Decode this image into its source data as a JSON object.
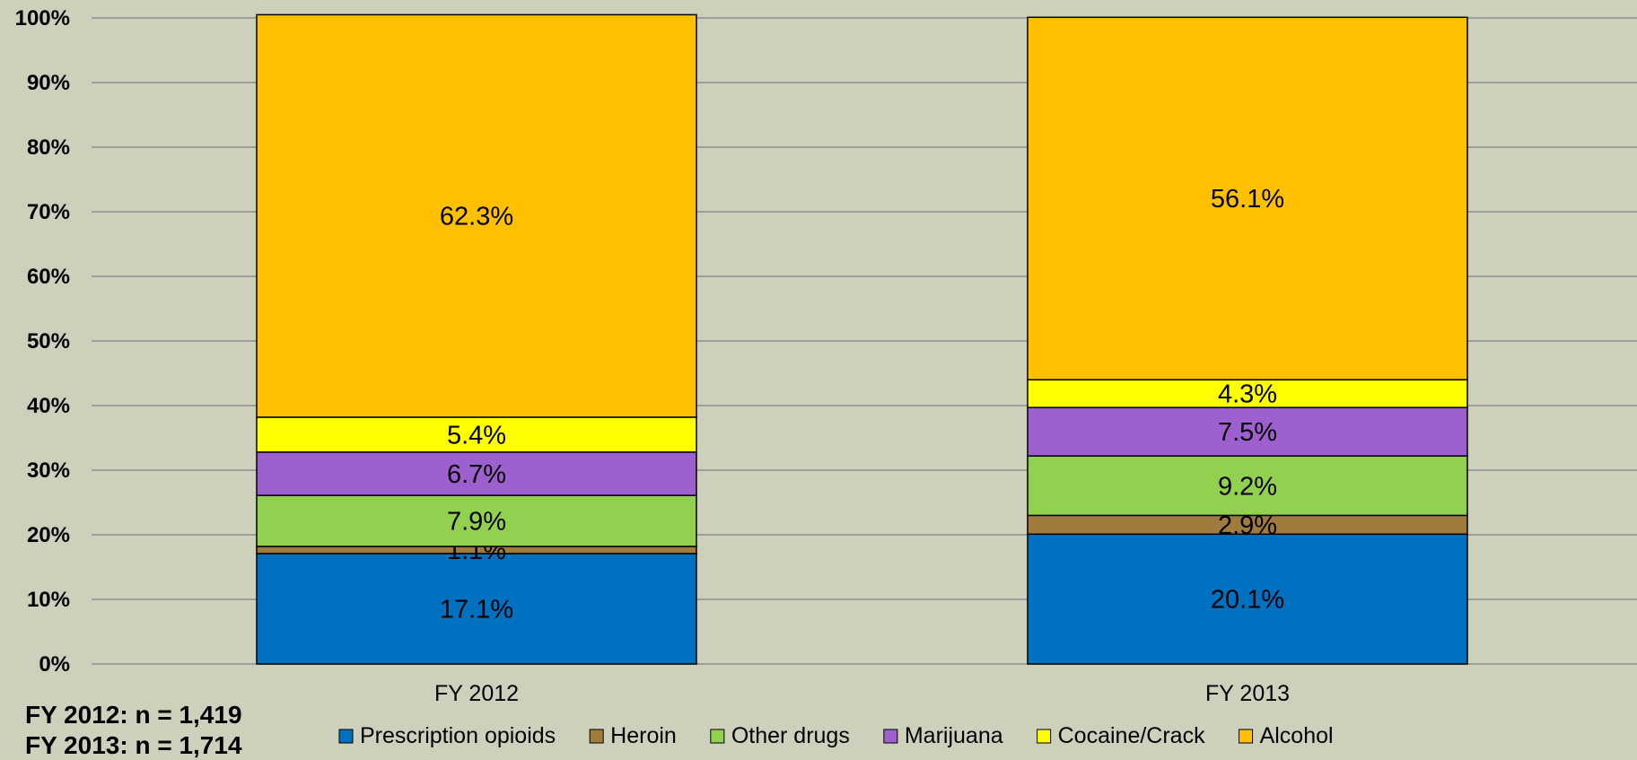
{
  "chart_data": {
    "type": "bar",
    "stacked": true,
    "normalized": true,
    "categories": [
      "FY 2012",
      "FY 2013"
    ],
    "series": [
      {
        "name": "Prescription opioids",
        "color": "#0070c0",
        "values": [
          17.1,
          20.1
        ],
        "labels": [
          "17.1%",
          "20.1%"
        ]
      },
      {
        "name": "Heroin",
        "color": "#a07b3c",
        "values": [
          1.1,
          2.9
        ],
        "labels": [
          "1.1%",
          "2.9%"
        ]
      },
      {
        "name": "Other drugs",
        "color": "#92d050",
        "values": [
          7.9,
          9.2
        ],
        "labels": [
          "7.9%",
          "9.2%"
        ]
      },
      {
        "name": "Marijuana",
        "color": "#9e5fcf",
        "values": [
          6.7,
          7.5
        ],
        "labels": [
          "6.7%",
          "7.5%"
        ]
      },
      {
        "name": "Cocaine/Crack",
        "color": "#ffff00",
        "values": [
          5.4,
          4.3
        ],
        "labels": [
          "5.4%",
          "4.3%"
        ]
      },
      {
        "name": "Alcohol",
        "color": "#ffc000",
        "values": [
          62.3,
          56.1
        ],
        "labels": [
          "62.3%",
          "56.1%"
        ]
      }
    ],
    "ylim": [
      0,
      100
    ],
    "yticks": [
      "0%",
      "10%",
      "20%",
      "30%",
      "40%",
      "50%",
      "60%",
      "70%",
      "80%",
      "90%",
      "100%"
    ],
    "grid": true,
    "legend_position": "bottom",
    "title": "",
    "xlabel": "",
    "ylabel": ""
  },
  "notes": [
    "FY 2012: n = 1,419",
    "FY 2013: n = 1,714"
  ]
}
